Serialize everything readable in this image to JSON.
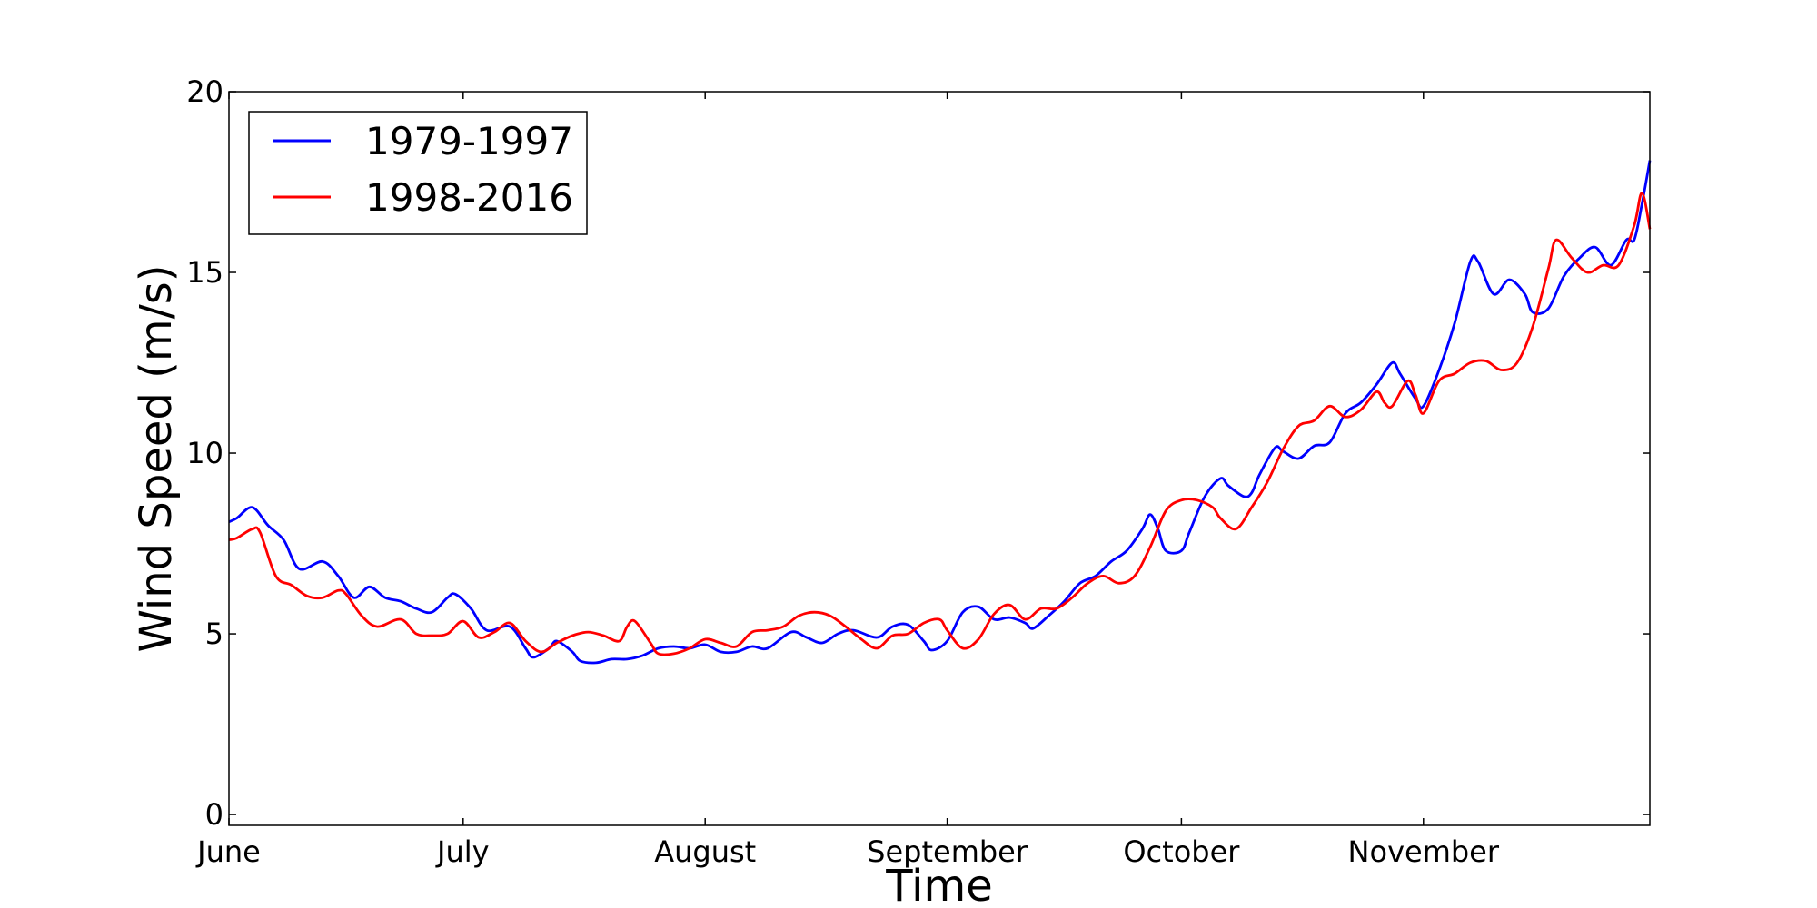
{
  "chart_data": {
    "type": "line",
    "xlabel": "Time",
    "ylabel": "Wind Speed (m/s)",
    "x_range": [
      1,
      183
    ],
    "ylim": [
      -0.3,
      20
    ],
    "grid": false,
    "legend_placement": "top-left",
    "x_ticks": [
      {
        "x": 1,
        "label": "June"
      },
      {
        "x": 31,
        "label": "July"
      },
      {
        "x": 62,
        "label": "August"
      },
      {
        "x": 93,
        "label": "September"
      },
      {
        "x": 123,
        "label": "October"
      },
      {
        "x": 154,
        "label": "November"
      }
    ],
    "y_ticks": [
      0,
      5,
      10,
      15,
      20
    ],
    "series": [
      {
        "name": "1979-1997",
        "color": "#0000ff",
        "points": [
          [
            1,
            8.1
          ],
          [
            2,
            8.2
          ],
          [
            4,
            8.5
          ],
          [
            6,
            8.0
          ],
          [
            8,
            7.6
          ],
          [
            10,
            6.8
          ],
          [
            13,
            7.0
          ],
          [
            15,
            6.6
          ],
          [
            17,
            6.0
          ],
          [
            19,
            6.3
          ],
          [
            21,
            6.0
          ],
          [
            23,
            5.9
          ],
          [
            25,
            5.7
          ],
          [
            27,
            5.6
          ],
          [
            29,
            6.0
          ],
          [
            30,
            6.1
          ],
          [
            32,
            5.7
          ],
          [
            34,
            5.1
          ],
          [
            37,
            5.2
          ],
          [
            39,
            4.6
          ],
          [
            40,
            4.35
          ],
          [
            42,
            4.6
          ],
          [
            43,
            4.8
          ],
          [
            45,
            4.5
          ],
          [
            46,
            4.25
          ],
          [
            48,
            4.2
          ],
          [
            50,
            4.3
          ],
          [
            52,
            4.3
          ],
          [
            54,
            4.4
          ],
          [
            56,
            4.6
          ],
          [
            58,
            4.65
          ],
          [
            60,
            4.6
          ],
          [
            62,
            4.7
          ],
          [
            64,
            4.5
          ],
          [
            66,
            4.5
          ],
          [
            68,
            4.65
          ],
          [
            70,
            4.6
          ],
          [
            73,
            5.05
          ],
          [
            75,
            4.9
          ],
          [
            77,
            4.75
          ],
          [
            79,
            5.0
          ],
          [
            81,
            5.1
          ],
          [
            84,
            4.9
          ],
          [
            86,
            5.2
          ],
          [
            88,
            5.25
          ],
          [
            90,
            4.8
          ],
          [
            91,
            4.55
          ],
          [
            93,
            4.8
          ],
          [
            95,
            5.6
          ],
          [
            97,
            5.75
          ],
          [
            99,
            5.4
          ],
          [
            101,
            5.45
          ],
          [
            103,
            5.3
          ],
          [
            104,
            5.15
          ],
          [
            106,
            5.5
          ],
          [
            108,
            5.9
          ],
          [
            110,
            6.4
          ],
          [
            112,
            6.6
          ],
          [
            114,
            7.0
          ],
          [
            116,
            7.3
          ],
          [
            118,
            7.9
          ],
          [
            119,
            8.3
          ],
          [
            120,
            7.9
          ],
          [
            121,
            7.3
          ],
          [
            123,
            7.3
          ],
          [
            124,
            7.8
          ],
          [
            126,
            8.8
          ],
          [
            128,
            9.3
          ],
          [
            129,
            9.1
          ],
          [
            131,
            8.8
          ],
          [
            132,
            8.9
          ],
          [
            133,
            9.4
          ],
          [
            135,
            10.15
          ],
          [
            136,
            10.05
          ],
          [
            138,
            9.85
          ],
          [
            140,
            10.2
          ],
          [
            142,
            10.3
          ],
          [
            144,
            11.1
          ],
          [
            146,
            11.4
          ],
          [
            148,
            11.9
          ],
          [
            150,
            12.5
          ],
          [
            151,
            12.2
          ],
          [
            153,
            11.5
          ],
          [
            154,
            11.3
          ],
          [
            156,
            12.3
          ],
          [
            158,
            13.6
          ],
          [
            160,
            15.3
          ],
          [
            161,
            15.3
          ],
          [
            163,
            14.4
          ],
          [
            165,
            14.8
          ],
          [
            167,
            14.4
          ],
          [
            168,
            13.9
          ],
          [
            170,
            14.0
          ],
          [
            172,
            14.9
          ],
          [
            174,
            15.4
          ],
          [
            176,
            15.7
          ],
          [
            178,
            15.2
          ],
          [
            180,
            15.9
          ],
          [
            181,
            15.9
          ],
          [
            182,
            16.9
          ],
          [
            183,
            18.1
          ]
        ]
      },
      {
        "name": "1998-2016",
        "color": "#ff0000",
        "points": [
          [
            1,
            7.6
          ],
          [
            2,
            7.65
          ],
          [
            4,
            7.9
          ],
          [
            5,
            7.8
          ],
          [
            7,
            6.6
          ],
          [
            9,
            6.35
          ],
          [
            11,
            6.05
          ],
          [
            13,
            6.0
          ],
          [
            15,
            6.2
          ],
          [
            16,
            6.1
          ],
          [
            18,
            5.5
          ],
          [
            20,
            5.2
          ],
          [
            23,
            5.4
          ],
          [
            25,
            5.0
          ],
          [
            27,
            4.95
          ],
          [
            29,
            5.0
          ],
          [
            31,
            5.35
          ],
          [
            33,
            4.9
          ],
          [
            35,
            5.05
          ],
          [
            37,
            5.3
          ],
          [
            39,
            4.8
          ],
          [
            41,
            4.5
          ],
          [
            43,
            4.75
          ],
          [
            45,
            4.95
          ],
          [
            47,
            5.05
          ],
          [
            49,
            4.95
          ],
          [
            51,
            4.8
          ],
          [
            52,
            5.2
          ],
          [
            53,
            5.35
          ],
          [
            55,
            4.75
          ],
          [
            56,
            4.45
          ],
          [
            58,
            4.45
          ],
          [
            60,
            4.6
          ],
          [
            62,
            4.85
          ],
          [
            64,
            4.75
          ],
          [
            66,
            4.65
          ],
          [
            68,
            5.05
          ],
          [
            70,
            5.1
          ],
          [
            72,
            5.2
          ],
          [
            74,
            5.5
          ],
          [
            76,
            5.6
          ],
          [
            78,
            5.5
          ],
          [
            80,
            5.2
          ],
          [
            82,
            4.85
          ],
          [
            84,
            4.6
          ],
          [
            86,
            4.95
          ],
          [
            88,
            5.0
          ],
          [
            90,
            5.3
          ],
          [
            92,
            5.4
          ],
          [
            93,
            5.1
          ],
          [
            95,
            4.6
          ],
          [
            97,
            4.85
          ],
          [
            99,
            5.55
          ],
          [
            101,
            5.8
          ],
          [
            103,
            5.4
          ],
          [
            105,
            5.7
          ],
          [
            107,
            5.7
          ],
          [
            109,
            6.0
          ],
          [
            111,
            6.4
          ],
          [
            113,
            6.6
          ],
          [
            115,
            6.4
          ],
          [
            117,
            6.6
          ],
          [
            119,
            7.4
          ],
          [
            121,
            8.4
          ],
          [
            123,
            8.7
          ],
          [
            125,
            8.7
          ],
          [
            127,
            8.5
          ],
          [
            128,
            8.2
          ],
          [
            130,
            7.9
          ],
          [
            132,
            8.5
          ],
          [
            134,
            9.2
          ],
          [
            136,
            10.1
          ],
          [
            138,
            10.75
          ],
          [
            140,
            10.9
          ],
          [
            142,
            11.3
          ],
          [
            144,
            11.0
          ],
          [
            146,
            11.2
          ],
          [
            148,
            11.7
          ],
          [
            149,
            11.4
          ],
          [
            150,
            11.3
          ],
          [
            152,
            12.0
          ],
          [
            153,
            11.6
          ],
          [
            154,
            11.1
          ],
          [
            156,
            12.0
          ],
          [
            158,
            12.2
          ],
          [
            160,
            12.5
          ],
          [
            162,
            12.55
          ],
          [
            164,
            12.3
          ],
          [
            166,
            12.5
          ],
          [
            168,
            13.5
          ],
          [
            170,
            15.1
          ],
          [
            171,
            15.9
          ],
          [
            173,
            15.4
          ],
          [
            175,
            15.0
          ],
          [
            177,
            15.2
          ],
          [
            179,
            15.2
          ],
          [
            181,
            16.3
          ],
          [
            182,
            17.2
          ],
          [
            183,
            16.2
          ]
        ]
      }
    ]
  }
}
